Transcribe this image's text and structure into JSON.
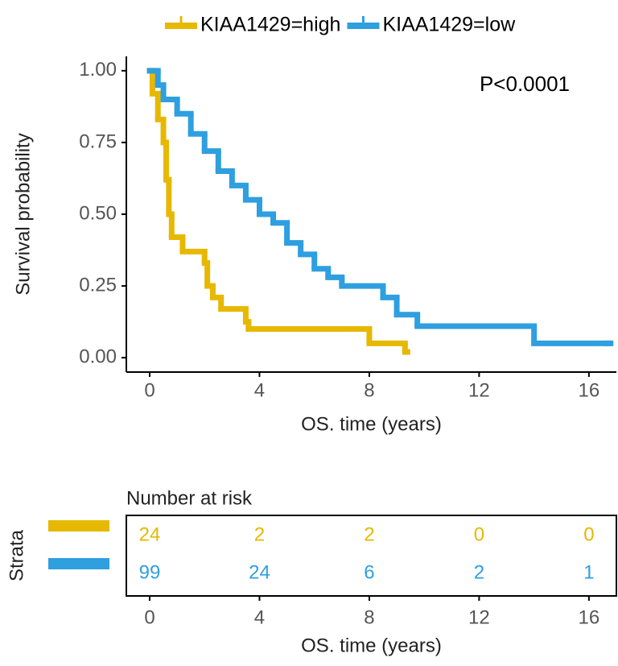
{
  "chart_data": {
    "type": "step",
    "x_label": "OS. time (years)",
    "y_label": "Survival probability",
    "annotation": "P<0.0001",
    "xlim": [
      -0.85,
      17
    ],
    "xticks": [
      0,
      4,
      8,
      12,
      16
    ],
    "ylim": [
      -0.05,
      1.05
    ],
    "yticks": [
      {
        "value": 0,
        "label": "0.00"
      },
      {
        "value": 0.25,
        "label": "0.25"
      },
      {
        "value": 0.5,
        "label": "0.50"
      },
      {
        "value": 0.75,
        "label": "0.75"
      },
      {
        "value": 1,
        "label": "1.00"
      }
    ],
    "series": [
      {
        "name": "KIAA1429=high",
        "color": "#E7B800",
        "x": [
          0,
          0.1,
          0.3,
          0.5,
          0.6,
          0.7,
          0.8,
          1.2,
          2.0,
          2.1,
          2.3,
          2.6,
          3.5,
          3.6,
          8.0,
          9.3
        ],
        "values": [
          1.0,
          0.92,
          0.83,
          0.75,
          0.62,
          0.5,
          0.42,
          0.37,
          0.33,
          0.25,
          0.21,
          0.17,
          0.125,
          0.1,
          0.05,
          0.02
        ]
      },
      {
        "name": "KIAA1429=low",
        "color": "#2E9FDF",
        "x": [
          0,
          0.3,
          0.5,
          1,
          1.5,
          2,
          2.5,
          3,
          3.5,
          4,
          4.5,
          5,
          5.5,
          6,
          6.5,
          7,
          8.5,
          9,
          9.75,
          14,
          16.7
        ],
        "values": [
          1.0,
          0.95,
          0.9,
          0.85,
          0.78,
          0.72,
          0.65,
          0.6,
          0.55,
          0.5,
          0.47,
          0.4,
          0.36,
          0.31,
          0.28,
          0.25,
          0.21,
          0.15,
          0.11,
          0.05,
          0.05
        ]
      }
    ],
    "risk_table": {
      "title": "Number at risk",
      "y_label": "Strata",
      "x_label": "OS. time (years)",
      "times": [
        0,
        4,
        8,
        12,
        16
      ],
      "rows": [
        {
          "color": "#E7B800",
          "values": [
            24,
            2,
            2,
            0,
            0
          ]
        },
        {
          "color": "#2E9FDF",
          "values": [
            99,
            24,
            6,
            2,
            1
          ]
        }
      ]
    }
  }
}
